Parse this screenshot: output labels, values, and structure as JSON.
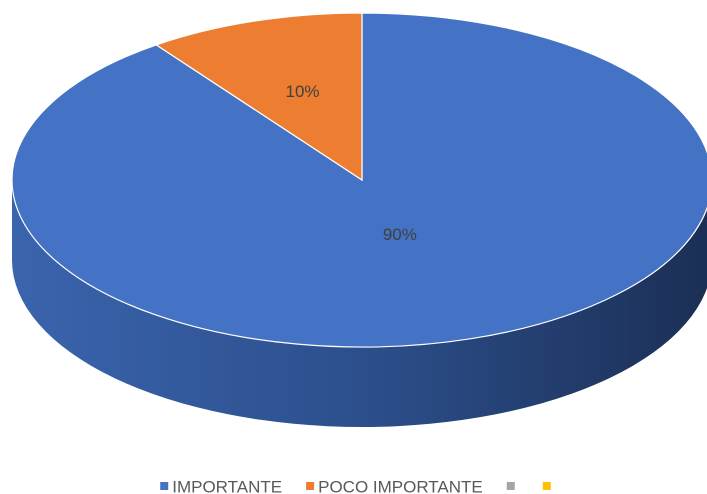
{
  "chart_data": {
    "type": "pie",
    "categories": [
      "IMPORTANTE",
      "POCO IMPORTANTE",
      null,
      null
    ],
    "values": [
      90,
      10,
      0,
      0
    ],
    "value_labels": [
      "90%",
      "10%",
      null,
      null
    ],
    "colors": [
      "#4472c4",
      "#ed7d31",
      "#a5a5a5",
      "#ffc000"
    ],
    "legend": "bottom"
  }
}
